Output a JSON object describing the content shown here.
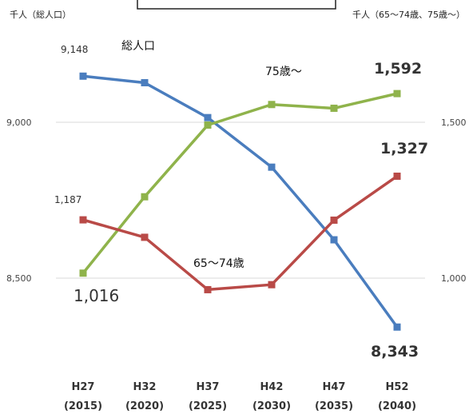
{
  "chart_data": {
    "type": "line",
    "left_axis_unit": "千人（総人口）",
    "right_axis_unit": "千人（65〜74歳、75歳〜）",
    "left_ticks": [
      "9,000",
      "8,500"
    ],
    "right_ticks": [
      "1,500",
      "1,000"
    ],
    "left_ylim": [
      8500,
      9000
    ],
    "right_ylim": [
      1000,
      1500
    ],
    "categories": [
      {
        "era": "H27",
        "year": "(2015)"
      },
      {
        "era": "H32",
        "year": "(2020)"
      },
      {
        "era": "H37",
        "year": "(2025)"
      },
      {
        "era": "H42",
        "year": "(2030)"
      },
      {
        "era": "H47",
        "year": "(2035)"
      },
      {
        "era": "H52",
        "year": "(2040)"
      }
    ],
    "series": [
      {
        "name": "総人口",
        "axis": "left",
        "color": "#4a7dbe",
        "marker": "square",
        "values": [
          9148,
          9127,
          9015,
          8856,
          8623,
          8343
        ]
      },
      {
        "name": "75歳〜",
        "axis": "right",
        "color": "#8fb34b",
        "marker": "square",
        "values": [
          1016,
          1261,
          1491,
          1557,
          1545,
          1592
        ]
      },
      {
        "name": "65〜74歳",
        "axis": "right",
        "color": "#b94a47",
        "marker": "square",
        "values": [
          1187,
          1131,
          963,
          979,
          1186,
          1327
        ]
      }
    ],
    "data_labels": [
      "9,148",
      "1,187",
      "1,016",
      "1,592",
      "1,327",
      "8,343"
    ],
    "grid": true
  }
}
